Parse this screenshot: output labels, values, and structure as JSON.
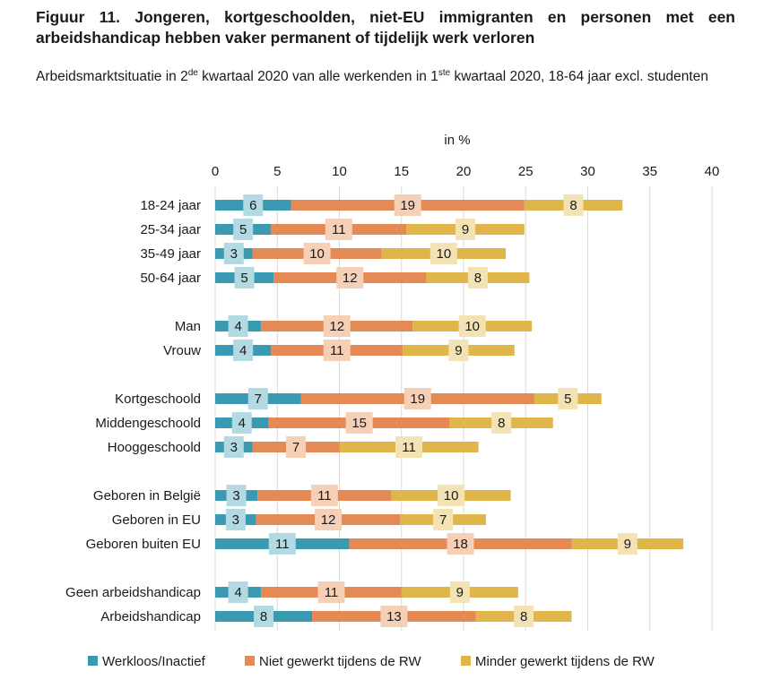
{
  "title": "Figuur 11. Jongeren, kortgeschoolden, niet-EU immigranten en personen met een arbeidshandicap hebben vaker permanent of tijdelijk werk verloren",
  "subtitle": {
    "p1": "Arbeidsmarktsituatie in 2",
    "sup1": "de",
    "p2": " kwartaal 2020 van alle werkenden in 1",
    "sup2": "ste",
    "p3": " kwartaal 2020, 18-64 jaar excl. studenten"
  },
  "chart_data": {
    "type": "bar",
    "orientation": "horizontal",
    "stacked": true,
    "unit_label": "in %",
    "xlim": [
      0,
      40
    ],
    "xticks": [
      0,
      5,
      10,
      15,
      20,
      25,
      30,
      35,
      40
    ],
    "grid": true,
    "legend_position": "bottom",
    "categories": [
      "18-24 jaar",
      "25-34 jaar",
      "35-49 jaar",
      "50-64 jaar",
      "Man",
      "Vrouw",
      "Kortgeschoold",
      "Middengeschoold",
      "Hooggeschoold",
      "Geboren in België",
      "Geboren in EU",
      "Geboren buiten EU",
      "Geen arbeidshandicap",
      "Arbeidshandicap"
    ],
    "group_sizes": [
      4,
      2,
      3,
      3,
      2
    ],
    "series": [
      {
        "name": "Werkloos/Inactief",
        "color": "#3a9ab2",
        "label_bg": "#b3d9e3",
        "values": [
          6.1,
          4.5,
          3.0,
          4.7,
          3.7,
          4.5,
          6.9,
          4.3,
          3.0,
          3.4,
          3.3,
          10.8,
          3.7,
          7.8
        ]
      },
      {
        "name": "Niet gewerkt tijdens de RW",
        "color": "#e68a55",
        "label_bg": "#f5cfb6",
        "values": [
          18.8,
          10.9,
          10.4,
          12.3,
          12.2,
          10.6,
          18.8,
          14.6,
          7.0,
          10.8,
          11.6,
          17.9,
          11.3,
          13.2
        ]
      },
      {
        "name": "Minder gewerkt tijdens de RW",
        "color": "#e0b64a",
        "label_bg": "#f3e2b4",
        "values": [
          7.9,
          9.5,
          10.0,
          8.3,
          9.6,
          9.0,
          5.4,
          8.3,
          11.2,
          9.6,
          6.9,
          9.0,
          9.4,
          7.7
        ]
      }
    ],
    "data_labels": [
      [
        "6",
        "5",
        "3",
        "5",
        "4",
        "4",
        "7",
        "4",
        "3",
        "3",
        "3",
        "11",
        "4",
        "8"
      ],
      [
        "19",
        "11",
        "10",
        "12",
        "12",
        "11",
        "19",
        "15",
        "7",
        "11",
        "12",
        "18",
        "11",
        "13"
      ],
      [
        "8",
        "9",
        "10",
        "8",
        "10",
        "9",
        "5",
        "8",
        "11",
        "10",
        "7",
        "9",
        "9",
        "8"
      ]
    ]
  }
}
